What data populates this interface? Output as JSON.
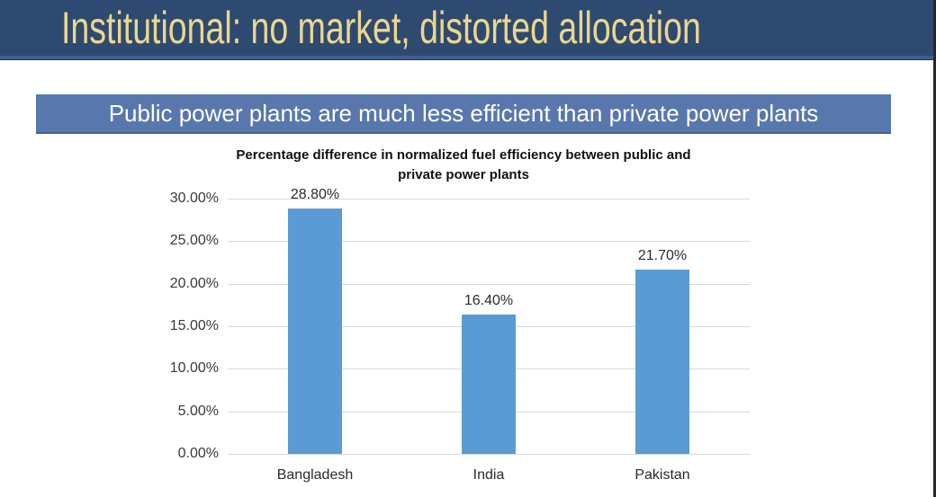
{
  "slide": {
    "title": "Institutional: no market, distorted allocation",
    "subtitle_banner": "Public power plants are much less efficient than private power plants"
  },
  "colors": {
    "title_banner_bg": "#2F4A70",
    "title_banner_edge": "#3E5C92",
    "title_text": "#EBD88D",
    "subtitle_banner_bg": "#5878AD",
    "subtitle_text": "#FFFFFF",
    "bar_fill": "#5B9BD5",
    "gridline": "#D9D9D9",
    "right_edge": "#262626"
  },
  "chart_data": {
    "type": "bar",
    "title": "Percentage difference in normalized fuel efficiency between public and private power plants",
    "title_lines": [
      "Percentage difference in normalized fuel efficiency between public and",
      "private power plants"
    ],
    "categories": [
      "Bangladesh",
      "India",
      "Pakistan"
    ],
    "values": [
      28.8,
      16.4,
      21.7
    ],
    "value_labels": [
      "28.80%",
      "16.40%",
      "21.70%"
    ],
    "y_ticks": [
      30,
      25,
      20,
      15,
      10,
      5,
      0
    ],
    "y_tick_labels": [
      "30.00%",
      "25.00%",
      "20.00%",
      "15.00%",
      "10.00%",
      "5.00%",
      "0.00%"
    ],
    "ylim": [
      0,
      30
    ],
    "grid": true,
    "legend": "none",
    "xlabel": "",
    "ylabel": ""
  }
}
